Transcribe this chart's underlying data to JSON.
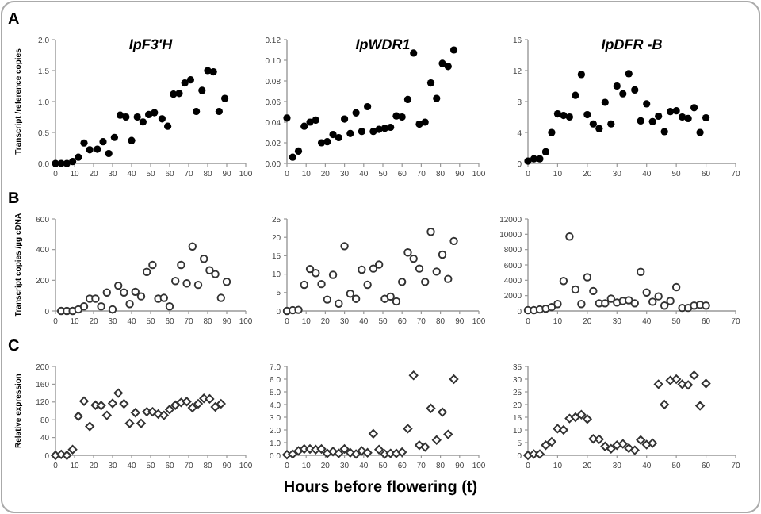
{
  "chart_data": [
    {
      "type": "scatter",
      "title": "IpF3'H",
      "ylabel": "Transcript /reference copies",
      "annotations": [
        "A"
      ],
      "marker": "circle",
      "xlim": [
        0,
        100
      ],
      "xticks": [
        0,
        10,
        20,
        30,
        40,
        50,
        60,
        70,
        80,
        90,
        100
      ],
      "ylim": [
        0,
        2
      ],
      "yticks": [
        {
          "value": 0,
          "label": "0.0"
        },
        0.5,
        {
          "value": 1,
          "label": "1.0"
        },
        1.5,
        {
          "value": 2,
          "label": "2.0"
        }
      ],
      "series": [
        {
          "color": "#000000",
          "x": [
            0,
            3,
            6,
            9,
            12,
            15,
            18,
            22,
            25,
            28,
            31,
            34,
            37,
            40,
            43,
            46,
            49,
            52,
            56,
            59,
            62,
            65,
            68,
            71,
            74,
            77,
            80,
            83,
            86,
            89
          ],
          "values": [
            0,
            0,
            0,
            0.03,
            0.1,
            0.33,
            0.22,
            0.23,
            0.35,
            0.16,
            0.42,
            0.78,
            0.75,
            0.37,
            0.75,
            0.67,
            0.79,
            0.82,
            0.72,
            0.6,
            1.12,
            1.13,
            1.3,
            1.35,
            0.84,
            1.18,
            1.5,
            1.48,
            0.84,
            1.05
          ]
        }
      ]
    },
    {
      "type": "scatter",
      "title": "IpWDR1",
      "marker": "circle",
      "xlim": [
        0,
        100
      ],
      "xticks": [
        0,
        10,
        20,
        30,
        40,
        50,
        60,
        70,
        80,
        90,
        100
      ],
      "ylim": [
        0,
        0.12
      ],
      "yticks": [
        {
          "value": 0,
          "label": "0.00"
        },
        {
          "value": 0.02,
          "label": "0.02"
        },
        {
          "value": 0.04,
          "label": "0.04"
        },
        {
          "value": 0.06,
          "label": "0.06"
        },
        {
          "value": 0.08,
          "label": "0.08"
        },
        {
          "value": 0.1,
          "label": "0.10"
        },
        {
          "value": 0.12,
          "label": "0.12"
        }
      ],
      "series": [
        {
          "color": "#000000",
          "x": [
            0,
            3,
            6,
            9,
            12,
            15,
            18,
            21,
            24,
            27,
            30,
            33,
            36,
            39,
            42,
            45,
            48,
            51,
            54,
            57,
            60,
            63,
            66,
            69,
            72,
            75,
            78,
            81,
            84,
            87
          ],
          "values": [
            0.044,
            0.006,
            0.012,
            0.036,
            0.04,
            0.042,
            0.02,
            0.021,
            0.028,
            0.025,
            0.043,
            0.029,
            0.049,
            0.031,
            0.055,
            0.031,
            0.033,
            0.034,
            0.035,
            0.046,
            0.045,
            0.062,
            0.107,
            0.038,
            0.04,
            0.078,
            0.063,
            0.097,
            0.094,
            0.11
          ]
        }
      ]
    },
    {
      "type": "scatter",
      "title": "IpDFR -B",
      "marker": "circle",
      "xlim": [
        0,
        70
      ],
      "xticks": [
        0,
        10,
        20,
        30,
        40,
        50,
        60,
        70
      ],
      "ylim": [
        0,
        16
      ],
      "yticks": [
        0,
        4,
        8,
        12,
        16
      ],
      "series": [
        {
          "color": "#000000",
          "x": [
            0,
            2,
            4,
            6,
            8,
            10,
            12,
            14,
            16,
            18,
            20,
            22,
            24,
            26,
            28,
            30,
            32,
            34,
            36,
            38,
            40,
            42,
            44,
            46,
            48,
            50,
            52,
            54,
            56,
            58,
            60
          ],
          "values": [
            0.3,
            0.6,
            0.6,
            1.5,
            4,
            6.4,
            6.2,
            6,
            8.8,
            11.5,
            6.3,
            5.1,
            4.5,
            7.9,
            5.1,
            10,
            9,
            11.6,
            9.5,
            5.5,
            7.7,
            5.4,
            6.1,
            4.1,
            6.7,
            6.8,
            6,
            5.8,
            7.2,
            4,
            5.9
          ]
        }
      ]
    },
    {
      "type": "scatter",
      "ylabel": "Transcript copies /µg cDNA",
      "annotations": [
        "B"
      ],
      "marker": "circle",
      "xlim": [
        0,
        100
      ],
      "xticks": [
        0,
        10,
        20,
        30,
        40,
        50,
        60,
        70,
        80,
        90,
        100
      ],
      "ylim": [
        0,
        600
      ],
      "yticks": [
        0,
        200,
        400,
        600
      ],
      "series": [
        {
          "color": "#333333",
          "x": [
            3,
            6,
            9,
            12,
            15,
            18,
            21,
            24,
            27,
            30,
            33,
            36,
            39,
            42,
            45,
            48,
            51,
            54,
            57,
            60,
            63,
            66,
            69,
            72,
            75,
            78,
            81,
            84,
            87,
            90
          ],
          "values": [
            0,
            0,
            0,
            10,
            30,
            80,
            80,
            30,
            120,
            10,
            165,
            120,
            45,
            125,
            95,
            255,
            300,
            80,
            85,
            30,
            195,
            300,
            180,
            420,
            170,
            340,
            265,
            240,
            85,
            190
          ]
        }
      ]
    },
    {
      "type": "scatter",
      "marker": "circle",
      "xlim": [
        0,
        100
      ],
      "xticks": [
        0,
        10,
        20,
        30,
        40,
        50,
        60,
        70,
        80,
        90,
        100
      ],
      "ylim": [
        0,
        25
      ],
      "yticks": [
        0,
        5,
        10,
        15,
        20,
        25
      ],
      "series": [
        {
          "color": "#333333",
          "x": [
            0,
            3,
            6,
            9,
            12,
            15,
            18,
            21,
            24,
            27,
            30,
            33,
            36,
            39,
            42,
            45,
            48,
            51,
            54,
            57,
            60,
            63,
            66,
            69,
            72,
            75,
            78,
            81,
            84,
            87
          ],
          "values": [
            0,
            0.2,
            0.3,
            7.1,
            11.4,
            10.3,
            7.3,
            3.1,
            9.8,
            2,
            17.6,
            4.7,
            3.3,
            11.2,
            7.1,
            11.5,
            12.6,
            3.3,
            3.9,
            2.6,
            7.9,
            15.9,
            14.2,
            11.5,
            7.9,
            21.5,
            10.7,
            15.3,
            8.7,
            19
          ]
        }
      ]
    },
    {
      "type": "scatter",
      "marker": "circle",
      "xlim": [
        0,
        70
      ],
      "xticks": [
        0,
        10,
        20,
        30,
        40,
        50,
        60,
        70
      ],
      "ylim": [
        0,
        12000
      ],
      "yticks": [
        0,
        2000,
        4000,
        6000,
        8000,
        10000,
        12000
      ],
      "series": [
        {
          "color": "#333333",
          "x": [
            0,
            2,
            4,
            6,
            8,
            10,
            12,
            14,
            16,
            18,
            20,
            22,
            24,
            26,
            28,
            30,
            32,
            34,
            36,
            38,
            40,
            42,
            44,
            46,
            48,
            50,
            52,
            54,
            56,
            58,
            60
          ],
          "values": [
            100,
            100,
            200,
            300,
            500,
            900,
            3900,
            9700,
            2800,
            900,
            4400,
            2600,
            1000,
            1000,
            1600,
            1100,
            1300,
            1400,
            1000,
            5100,
            2400,
            1200,
            1900,
            700,
            1300,
            3100,
            400,
            400,
            700,
            800,
            700
          ]
        }
      ]
    },
    {
      "type": "scatter",
      "ylabel": "Relative expression",
      "annotations": [
        "C"
      ],
      "marker": "diamond",
      "xlim": [
        0,
        100
      ],
      "xticks": [
        0,
        10,
        20,
        30,
        40,
        50,
        60,
        70,
        80,
        90,
        100
      ],
      "ylim": [
        0,
        200
      ],
      "yticks": [
        0,
        40,
        80,
        120,
        160,
        200
      ],
      "series": [
        {
          "color": "#333333",
          "x": [
            0,
            3,
            6,
            9,
            12,
            15,
            18,
            21,
            24,
            27,
            30,
            33,
            36,
            39,
            42,
            45,
            48,
            51,
            54,
            57,
            60,
            63,
            66,
            69,
            72,
            75,
            78,
            81,
            84,
            87
          ],
          "values": [
            0,
            2,
            0,
            13,
            88,
            122,
            65,
            113,
            112,
            90,
            117,
            140,
            116,
            72,
            96,
            72,
            98,
            98,
            93,
            90,
            103,
            113,
            119,
            121,
            107,
            116,
            128,
            127,
            109,
            116
          ]
        }
      ]
    },
    {
      "type": "scatter",
      "xlabel": "Hours before flowering  (t)",
      "marker": "diamond",
      "xlim": [
        0,
        100
      ],
      "xticks": [
        0,
        10,
        20,
        30,
        40,
        50,
        60,
        70,
        80,
        90,
        100
      ],
      "ylim": [
        0,
        7
      ],
      "yticks": [
        {
          "value": 0,
          "label": "0.0"
        },
        {
          "value": 1,
          "label": "1.0"
        },
        {
          "value": 2,
          "label": "2.0"
        },
        {
          "value": 3,
          "label": "3.0"
        },
        {
          "value": 4,
          "label": "4.0"
        },
        {
          "value": 5,
          "label": "5.0"
        },
        {
          "value": 6,
          "label": "6.0"
        },
        {
          "value": 7,
          "label": "7.0"
        }
      ],
      "series": [
        {
          "color": "#333333",
          "x": [
            0,
            3,
            6,
            9,
            12,
            15,
            18,
            21,
            24,
            27,
            30,
            33,
            36,
            39,
            42,
            45,
            48,
            51,
            54,
            57,
            60,
            63,
            66,
            69,
            72,
            75,
            78,
            81,
            84,
            87
          ],
          "values": [
            0.05,
            0.1,
            0.35,
            0.5,
            0.5,
            0.45,
            0.5,
            0.15,
            0.3,
            0.15,
            0.5,
            0.2,
            0.1,
            0.35,
            0.2,
            1.7,
            0.45,
            0.1,
            0.15,
            0.15,
            0.25,
            2.1,
            6.3,
            0.8,
            0.65,
            3.7,
            1.2,
            3.4,
            1.65,
            6
          ]
        }
      ]
    },
    {
      "type": "scatter",
      "marker": "diamond",
      "xlim": [
        0,
        70
      ],
      "xticks": [
        0,
        10,
        20,
        30,
        40,
        50,
        60,
        70
      ],
      "ylim": [
        0,
        35
      ],
      "yticks": [
        0,
        5,
        10,
        15,
        20,
        25,
        30,
        35
      ],
      "series": [
        {
          "color": "#333333",
          "x": [
            0,
            2,
            4,
            6,
            8,
            10,
            12,
            14,
            16,
            18,
            20,
            22,
            24,
            26,
            28,
            30,
            32,
            34,
            36,
            38,
            40,
            42,
            44,
            46,
            48,
            50,
            52,
            54,
            56,
            58,
            60
          ],
          "values": [
            0,
            0.5,
            0.5,
            4,
            5.3,
            10.5,
            10,
            14.5,
            15,
            16,
            14.3,
            6.5,
            6.3,
            3.5,
            2.6,
            4,
            4.5,
            2.8,
            2,
            6,
            4.2,
            4.8,
            28,
            20,
            29.5,
            30,
            28,
            27.7,
            31.5,
            19.5,
            28.3
          ]
        }
      ]
    }
  ]
}
